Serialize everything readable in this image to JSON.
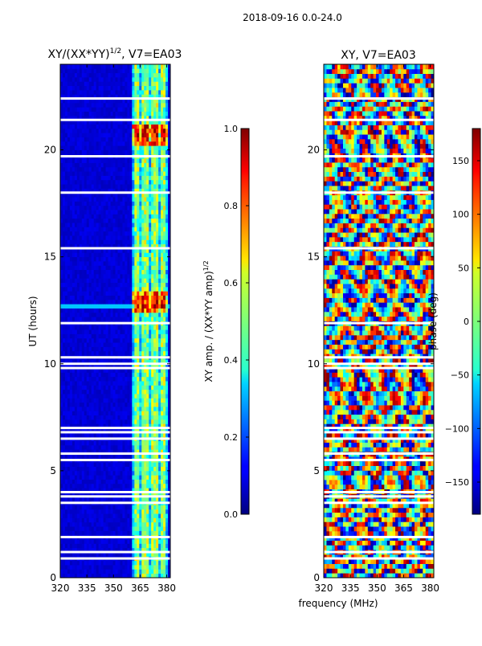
{
  "page": {
    "suptitle": "2018-09-16 0.0-24.0",
    "shared_xlabel": "frequency (MHz)"
  },
  "chart_data": [
    {
      "type": "heatmap",
      "title_base": "XY/(XX*YY)",
      "title_exp": "1/2",
      "title_suffix": ", V7=EA03",
      "ylabel": "UT (hours)",
      "xlim": [
        320,
        382
      ],
      "ylim": [
        0,
        24
      ],
      "xticks": [
        320,
        335,
        350,
        365,
        380
      ],
      "yticks": [
        0,
        5,
        10,
        15,
        20
      ],
      "colorbar": {
        "label_base": "XY amp. / (XX*YY amp)",
        "label_exp": "1/2",
        "range": [
          0.0,
          1.0
        ],
        "ticks": [
          "0.0",
          "0.2",
          "0.4",
          "0.6",
          "0.8",
          "1.0"
        ],
        "colormap": "jet"
      },
      "features": {
        "bright_band_mhz": [
          360,
          381
        ],
        "bright_channel_columns_mhz": [
          363,
          368,
          373,
          378
        ],
        "hot_spot_hours": [
          [
            12.4,
            13.4
          ],
          [
            20.3,
            21.1
          ]
        ],
        "strong_rfi_hour": 12.7,
        "flagged_hours": [
          0.9,
          1.2,
          1.9,
          3.5,
          3.8,
          4.0,
          5.5,
          5.8,
          6.5,
          6.8,
          7.0,
          9.8,
          10.0,
          10.3,
          11.9,
          15.4,
          18.0,
          19.7,
          21.4,
          22.4
        ]
      }
    },
    {
      "type": "heatmap",
      "title": "XY, V7=EA03",
      "xlim": [
        320,
        382
      ],
      "ylim": [
        0,
        24
      ],
      "xticks": [
        320,
        335,
        350,
        365,
        380
      ],
      "yticks": [
        0,
        5,
        10,
        15,
        20
      ],
      "colorbar": {
        "label": "phase (deg)",
        "range": [
          -180,
          180
        ],
        "ticks": [
          "-150",
          "-100",
          "-50",
          "0",
          "50",
          "100",
          "150"
        ],
        "colormap": "jet"
      },
      "features": {
        "flagged_hours": [
          0.9,
          1.2,
          1.9,
          3.5,
          3.8,
          4.0,
          5.5,
          5.8,
          6.5,
          6.8,
          7.0,
          9.8,
          10.0,
          10.3,
          11.9,
          15.4,
          18.0,
          19.7,
          21.4,
          22.4
        ]
      }
    }
  ]
}
